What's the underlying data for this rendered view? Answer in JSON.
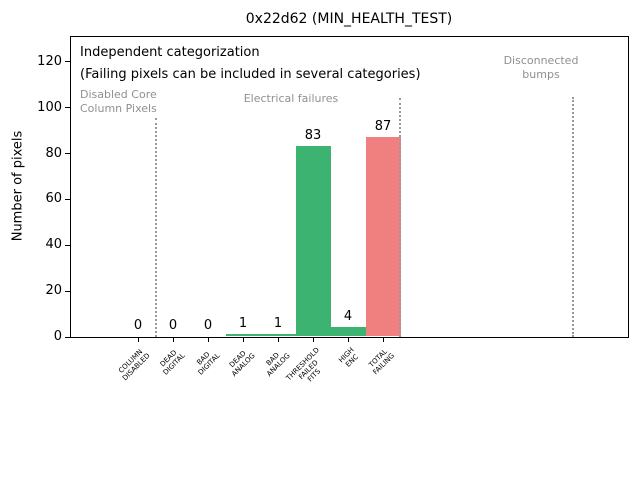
{
  "chart_data": {
    "type": "bar",
    "title": "0x22d62 (MIN_HEALTH_TEST)",
    "ylabel": "Number of pixels",
    "xlabel": "",
    "ylim": [
      0,
      131
    ],
    "yticks": [
      0,
      20,
      40,
      60,
      80,
      100,
      120
    ],
    "grid": false,
    "legend": "none",
    "categories": [
      "COLUMN\nDISABLED",
      "DEAD\nDIGITAL",
      "BAD\nDIGITAL",
      "DEAD\nANALOG",
      "BAD\nANALOG",
      "THRESHOLD\nFAILED\nFITS",
      "HIGH\nENC",
      "TOTAL\nFAILING"
    ],
    "values": [
      0,
      0,
      0,
      1,
      1,
      83,
      4,
      87
    ],
    "value_labels": [
      "0",
      "0",
      "0",
      "1",
      "1",
      "83",
      "4",
      "87"
    ],
    "bar_colors": [
      "#3cb371",
      "#3cb371",
      "#3cb371",
      "#3cb371",
      "#3cb371",
      "#3cb371",
      "#3cb371",
      "#f08080"
    ],
    "annotations": {
      "note_line1": "Independent categorization",
      "note_line2": "(Failing pixels can be included in several categories)",
      "sections": [
        {
          "label": "Disabled Core\nColumn Pixels"
        },
        {
          "label": "Electrical failures"
        },
        {
          "label": "Disconnected\nbumps"
        }
      ]
    },
    "colors": {
      "bar_green": "#3cb371",
      "bar_red": "#f08080",
      "annotation_gray": "#909090",
      "separator_gray": "#999999",
      "axis_black": "#000000"
    }
  }
}
